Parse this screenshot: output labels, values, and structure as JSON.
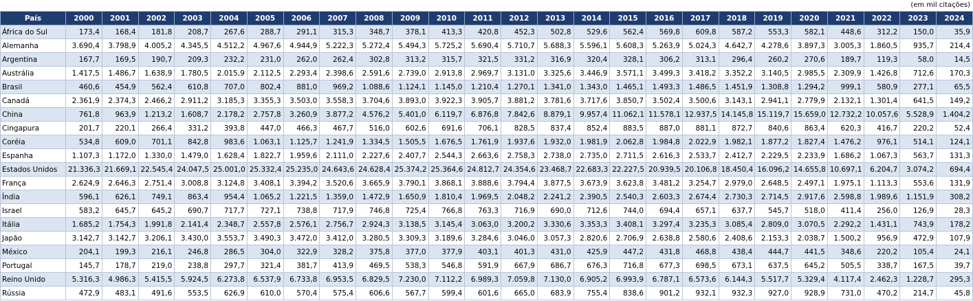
{
  "note": "(em mil citações)",
  "header": [
    "País",
    "2000",
    "2001",
    "2002",
    "2003",
    "2004",
    "2005",
    "2006",
    "2007",
    "2008",
    "2009",
    "2010",
    "2011",
    "2012",
    "2013",
    "2014",
    "2015",
    "2016",
    "2017",
    "2018",
    "2019",
    "2020",
    "2021",
    "2022",
    "2023",
    "2024"
  ],
  "rows": [
    [
      "África do Sul",
      "173,4",
      "168,4",
      "181,8",
      "208,7",
      "267,6",
      "288,7",
      "291,1",
      "315,3",
      "348,7",
      "378,1",
      "413,3",
      "420,8",
      "452,3",
      "502,8",
      "529,6",
      "562,4",
      "569,8",
      "609,8",
      "587,2",
      "553,3",
      "582,1",
      "448,6",
      "312,2",
      "150,0",
      "35,9"
    ],
    [
      "Alemanha",
      "3.690,4",
      "3.798,9",
      "4.005,2",
      "4.345,5",
      "4.512,2",
      "4.967,6",
      "4.944,9",
      "5.222,3",
      "5.272,4",
      "5.494,3",
      "5.725,2",
      "5.690,4",
      "5.710,7",
      "5.688,3",
      "5.596,1",
      "5.608,3",
      "5.263,9",
      "5.024,3",
      "4.642,7",
      "4.278,6",
      "3.897,3",
      "3.005,3",
      "1.860,5",
      "935,7",
      "214,4"
    ],
    [
      "Argentina",
      "167,7",
      "169,5",
      "190,7",
      "209,3",
      "232,2",
      "231,0",
      "262,0",
      "262,4",
      "302,8",
      "313,2",
      "315,7",
      "321,5",
      "331,2",
      "316,9",
      "320,4",
      "328,1",
      "306,2",
      "313,1",
      "296,4",
      "260,2",
      "270,6",
      "189,7",
      "119,3",
      "58,0",
      "14,5"
    ],
    [
      "Austrália",
      "1.417,5",
      "1.486,7",
      "1.638,9",
      "1.780,5",
      "2.015,9",
      "2.112,5",
      "2.293,4",
      "2.398,6",
      "2.591,6",
      "2.739,0",
      "2.913,8",
      "2.969,7",
      "3.131,0",
      "3.325,6",
      "3.446,9",
      "3.571,1",
      "3.499,3",
      "3.418,2",
      "3.352,2",
      "3.140,5",
      "2.985,5",
      "2.309,9",
      "1.426,8",
      "712,6",
      "170,3"
    ],
    [
      "Brasil",
      "460,6",
      "454,9",
      "562,4",
      "610,8",
      "707,0",
      "802,4",
      "881,0",
      "969,2",
      "1.088,6",
      "1.124,1",
      "1.145,0",
      "1.210,4",
      "1.270,1",
      "1.341,0",
      "1.343,0",
      "1.465,1",
      "1.493,3",
      "1.486,5",
      "1.451,9",
      "1.308,8",
      "1.294,2",
      "999,1",
      "580,9",
      "277,1",
      "65,5"
    ],
    [
      "Canadá",
      "2.361,9",
      "2.374,3",
      "2.466,2",
      "2.911,2",
      "3.185,3",
      "3.355,3",
      "3.503,0",
      "3.558,3",
      "3.704,6",
      "3.893,0",
      "3.922,3",
      "3.905,7",
      "3.881,2",
      "3.781,6",
      "3.717,6",
      "3.850,7",
      "3.502,4",
      "3.500,6",
      "3.143,1",
      "2.941,1",
      "2.779,9",
      "2.132,1",
      "1.301,4",
      "641,5",
      "149,2"
    ],
    [
      "China",
      "761,8",
      "963,9",
      "1.213,2",
      "1.608,7",
      "2.178,2",
      "2.757,8",
      "3.260,9",
      "3.877,2",
      "4.576,2",
      "5.401,0",
      "6.119,7",
      "6.876,8",
      "7.842,6",
      "8.879,1",
      "9.957,4",
      "11.062,1",
      "11.578,1",
      "12.937,5",
      "14.145,8",
      "15.119,7",
      "15.659,0",
      "12.732,2",
      "10.057,6",
      "5.528,9",
      "1.404,2"
    ],
    [
      "Cingapura",
      "201,7",
      "220,1",
      "266,4",
      "331,2",
      "393,8",
      "447,0",
      "466,3",
      "467,7",
      "516,0",
      "602,6",
      "691,6",
      "706,1",
      "828,5",
      "837,4",
      "852,4",
      "883,5",
      "887,0",
      "881,1",
      "872,7",
      "840,6",
      "863,4",
      "620,3",
      "416,7",
      "220,2",
      "52,4"
    ],
    [
      "Coréia",
      "534,8",
      "609,0",
      "701,1",
      "842,8",
      "983,6",
      "1.063,1",
      "1.125,7",
      "1.241,9",
      "1.334,5",
      "1.505,5",
      "1.676,5",
      "1.761,9",
      "1.937,6",
      "1.932,0",
      "1.981,9",
      "2.062,8",
      "1.984,8",
      "2.022,9",
      "1.982,1",
      "1.877,2",
      "1.827,4",
      "1.476,2",
      "976,1",
      "514,1",
      "124,1"
    ],
    [
      "Espanha",
      "1.107,3",
      "1.172,0",
      "1.330,0",
      "1.479,0",
      "1.628,4",
      "1.822,7",
      "1.959,6",
      "2.111,0",
      "2.227,6",
      "2.407,7",
      "2.544,3",
      "2.663,6",
      "2.758,3",
      "2.738,0",
      "2.735,0",
      "2.711,5",
      "2.616,3",
      "2.533,7",
      "2.412,7",
      "2.229,5",
      "2.233,9",
      "1.686,2",
      "1.067,3",
      "563,7",
      "131,3"
    ],
    [
      "Estados Unidos",
      "21.336,3",
      "21.669,1",
      "22.545,4",
      "24.047,5",
      "25.001,0",
      "25.332,4",
      "25.235,0",
      "24.643,6",
      "24.628,4",
      "25.374,2",
      "25.364,6",
      "24.812,7",
      "24.354,6",
      "23.468,7",
      "22.683,3",
      "22.227,5",
      "20.939,5",
      "20.106,8",
      "18.450,4",
      "16.096,2",
      "14.655,8",
      "10.697,1",
      "6.204,7",
      "3.074,2",
      "694,4"
    ],
    [
      "França",
      "2.624,9",
      "2.646,3",
      "2.751,4",
      "3.008,8",
      "3.124,8",
      "3.408,1",
      "3.394,2",
      "3.520,6",
      "3.665,9",
      "3.790,1",
      "3.868,1",
      "3.888,6",
      "3.794,4",
      "3.877,5",
      "3.673,9",
      "3.623,8",
      "3.481,2",
      "3.254,7",
      "2.979,0",
      "2.648,5",
      "2.497,1",
      "1.975,1",
      "1.113,3",
      "553,6",
      "131,9"
    ],
    [
      "Índia",
      "596,1",
      "626,1",
      "749,1",
      "863,4",
      "954,4",
      "1.065,2",
      "1.221,5",
      "1.359,0",
      "1.472,9",
      "1.650,9",
      "1.810,4",
      "1.969,5",
      "2.048,2",
      "2.241,2",
      "2.390,5",
      "2.540,3",
      "2.603,3",
      "2.674,4",
      "2.730,3",
      "2.714,5",
      "2.917,6",
      "2.598,8",
      "1.989,6",
      "1.151,9",
      "308,2"
    ],
    [
      "Israel",
      "583,2",
      "645,7",
      "645,2",
      "690,7",
      "717,7",
      "727,1",
      "738,8",
      "717,9",
      "746,8",
      "725,4",
      "766,8",
      "763,3",
      "716,9",
      "690,0",
      "712,6",
      "744,0",
      "694,4",
      "657,1",
      "637,7",
      "545,7",
      "518,0",
      "411,4",
      "256,0",
      "126,9",
      "28,3"
    ],
    [
      "Itália",
      "1.685,2",
      "1.754,3",
      "1.991,8",
      "2.141,4",
      "2.348,7",
      "2.557,8",
      "2.576,1",
      "2.756,7",
      "2.924,3",
      "3.138,5",
      "3.145,4",
      "3.063,0",
      "3.200,2",
      "3.330,6",
      "3.353,3",
      "3.408,1",
      "3.297,4",
      "3.235,3",
      "3.085,4",
      "2.809,0",
      "3.070,5",
      "2.292,2",
      "1.431,1",
      "743,9",
      "178,2"
    ],
    [
      "Japão",
      "3.142,7",
      "3.142,7",
      "3.206,1",
      "3.430,0",
      "3.553,7",
      "3.490,3",
      "3.472,0",
      "3.412,0",
      "3.280,5",
      "3.309,3",
      "3.189,6",
      "3.284,6",
      "3.046,0",
      "3.057,3",
      "2.820,6",
      "2.706,9",
      "2.638,8",
      "2.580,6",
      "2.408,6",
      "2.153,3",
      "2.038,7",
      "1.500,2",
      "956,9",
      "472,9",
      "107,9"
    ],
    [
      "México",
      "204,1",
      "199,3",
      "216,1",
      "246,8",
      "286,5",
      "304,0",
      "322,9",
      "328,2",
      "375,8",
      "377,0",
      "377,9",
      "403,1",
      "401,3",
      "431,0",
      "425,9",
      "447,2",
      "431,8",
      "468,8",
      "438,4",
      "444,7",
      "441,5",
      "348,6",
      "220,2",
      "105,4",
      "24,1"
    ],
    [
      "Portugal",
      "145,7",
      "178,7",
      "219,0",
      "238,8",
      "297,7",
      "321,4",
      "381,7",
      "413,9",
      "469,5",
      "538,3",
      "546,8",
      "591,9",
      "667,9",
      "686,7",
      "676,3",
      "716,8",
      "677,3",
      "698,5",
      "673,1",
      "637,5",
      "645,2",
      "505,5",
      "338,7",
      "167,5",
      "39,7"
    ],
    [
      "Reino Unido",
      "5.316,3",
      "4.986,3",
      "5.415,5",
      "5.924,5",
      "6.273,8",
      "6.537,9",
      "6.733,8",
      "6.953,5",
      "6.829,5",
      "7.230,0",
      "7.112,2",
      "6.989,3",
      "7.059,8",
      "7.130,0",
      "6.905,2",
      "6.993,9",
      "6.787,1",
      "6.573,6",
      "6.144,3",
      "5.517,7",
      "5.329,4",
      "4.117,4",
      "2.462,3",
      "1.228,7",
      "295,3"
    ],
    [
      "Rússia",
      "472,9",
      "483,1",
      "491,6",
      "553,5",
      "626,9",
      "610,0",
      "570,4",
      "575,4",
      "606,6",
      "567,7",
      "599,4",
      "601,6",
      "665,0",
      "683,9",
      "755,4",
      "838,6",
      "901,2",
      "932,1",
      "932,3",
      "927,0",
      "928,9",
      "731,0",
      "470,2",
      "214,7",
      "45,8"
    ]
  ]
}
